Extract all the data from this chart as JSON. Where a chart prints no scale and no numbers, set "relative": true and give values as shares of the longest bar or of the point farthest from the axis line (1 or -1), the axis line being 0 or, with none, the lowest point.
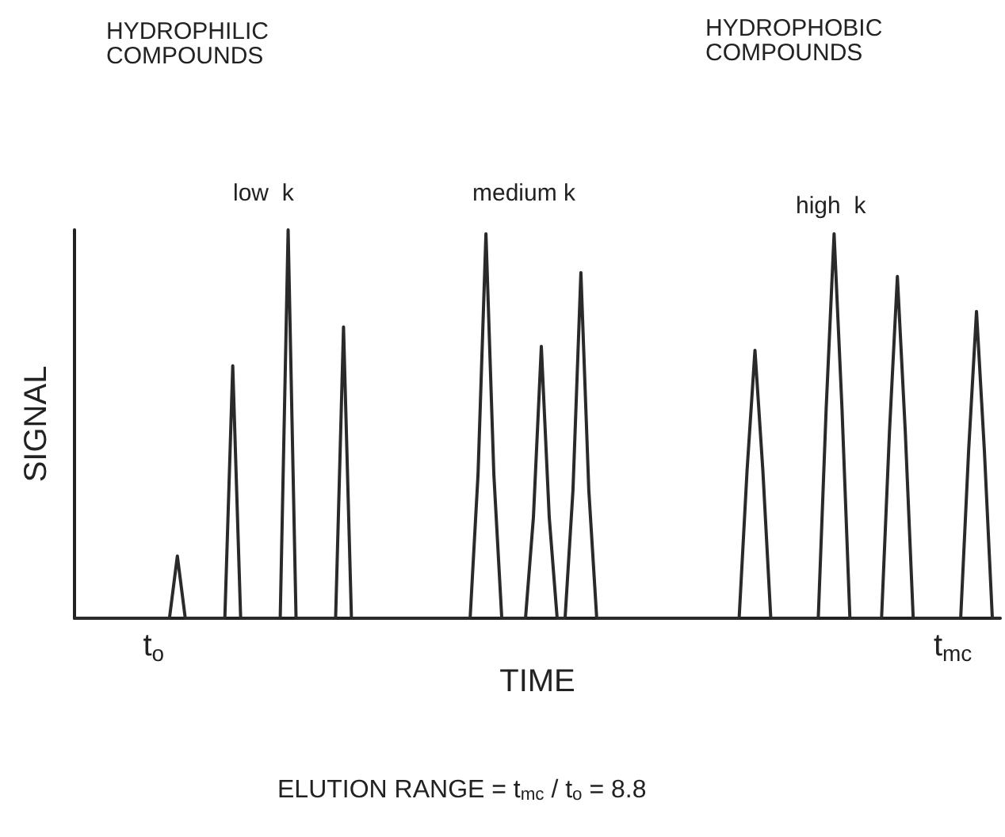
{
  "chart_data": {
    "type": "line",
    "relative": true,
    "xlabel": "TIME",
    "ylabel": "SIGNAL",
    "color": "#2a2a2a",
    "marker": "none",
    "annotations": [
      "HYDROPHILIC\nCOMPOUNDS",
      "HYDROPHOBIC\nCOMPOUNDS",
      "low  k",
      "medium k",
      "high  k",
      "ELUTION RANGE = t$_{mc}$ / t$_{o}$ = 8.8"
    ],
    "categories": [
      null,
      null,
      null,
      null,
      null,
      null,
      null,
      null,
      null,
      null,
      "t$_{o}$",
      null,
      null,
      null,
      null,
      null,
      null,
      null,
      null,
      null,
      null,
      null,
      null,
      null,
      null,
      null,
      null,
      null,
      null,
      null,
      null,
      null,
      null,
      null,
      null,
      null,
      null,
      null,
      null,
      null,
      null,
      null,
      null,
      null,
      null,
      null,
      null,
      null,
      null,
      null,
      null,
      null,
      null,
      null,
      null,
      null,
      null,
      null,
      null,
      null,
      null,
      null,
      null,
      null,
      null,
      null,
      null,
      null,
      null,
      null,
      null,
      null,
      null,
      null,
      null,
      null,
      null,
      null,
      null,
      null,
      null,
      null,
      null,
      null,
      null,
      null,
      null,
      null,
      null,
      null,
      null,
      null,
      null,
      null,
      null,
      null,
      null,
      null,
      null,
      null,
      null,
      null,
      null,
      null,
      null,
      null,
      null,
      null,
      null,
      null,
      null,
      "t$_{mc}$",
      null,
      null,
      null,
      null,
      null,
      null
    ],
    "values": [
      0,
      0,
      0,
      0,
      0,
      0,
      0,
      0,
      0,
      0,
      0,
      0,
      0,
      0.16,
      0,
      0,
      0,
      0,
      0,
      0,
      0.65,
      0,
      0,
      0,
      0,
      0,
      0,
      1,
      0,
      0,
      0,
      0,
      0,
      0,
      0.75,
      0,
      0,
      0,
      0,
      0,
      0,
      0,
      0,
      0,
      0,
      0,
      0,
      0,
      0,
      0,
      0,
      0.37,
      0.99,
      0.37,
      0,
      0,
      0,
      0,
      0.26,
      0.7,
      0.26,
      0,
      0,
      0.33,
      0.89,
      0.33,
      0,
      0,
      0,
      0,
      0,
      0,
      0,
      0,
      0,
      0,
      0,
      0,
      0,
      0,
      0,
      0,
      0,
      0,
      0,
      0.38,
      0.69,
      0.38,
      0,
      0,
      0,
      0,
      0,
      0,
      0,
      0.54,
      0.99,
      0.54,
      0,
      0,
      0,
      0,
      0,
      0.48,
      0.88,
      0.48,
      0,
      0,
      0,
      0,
      0,
      0,
      0,
      0.43,
      0.79,
      0.43,
      0,
      0
    ]
  }
}
